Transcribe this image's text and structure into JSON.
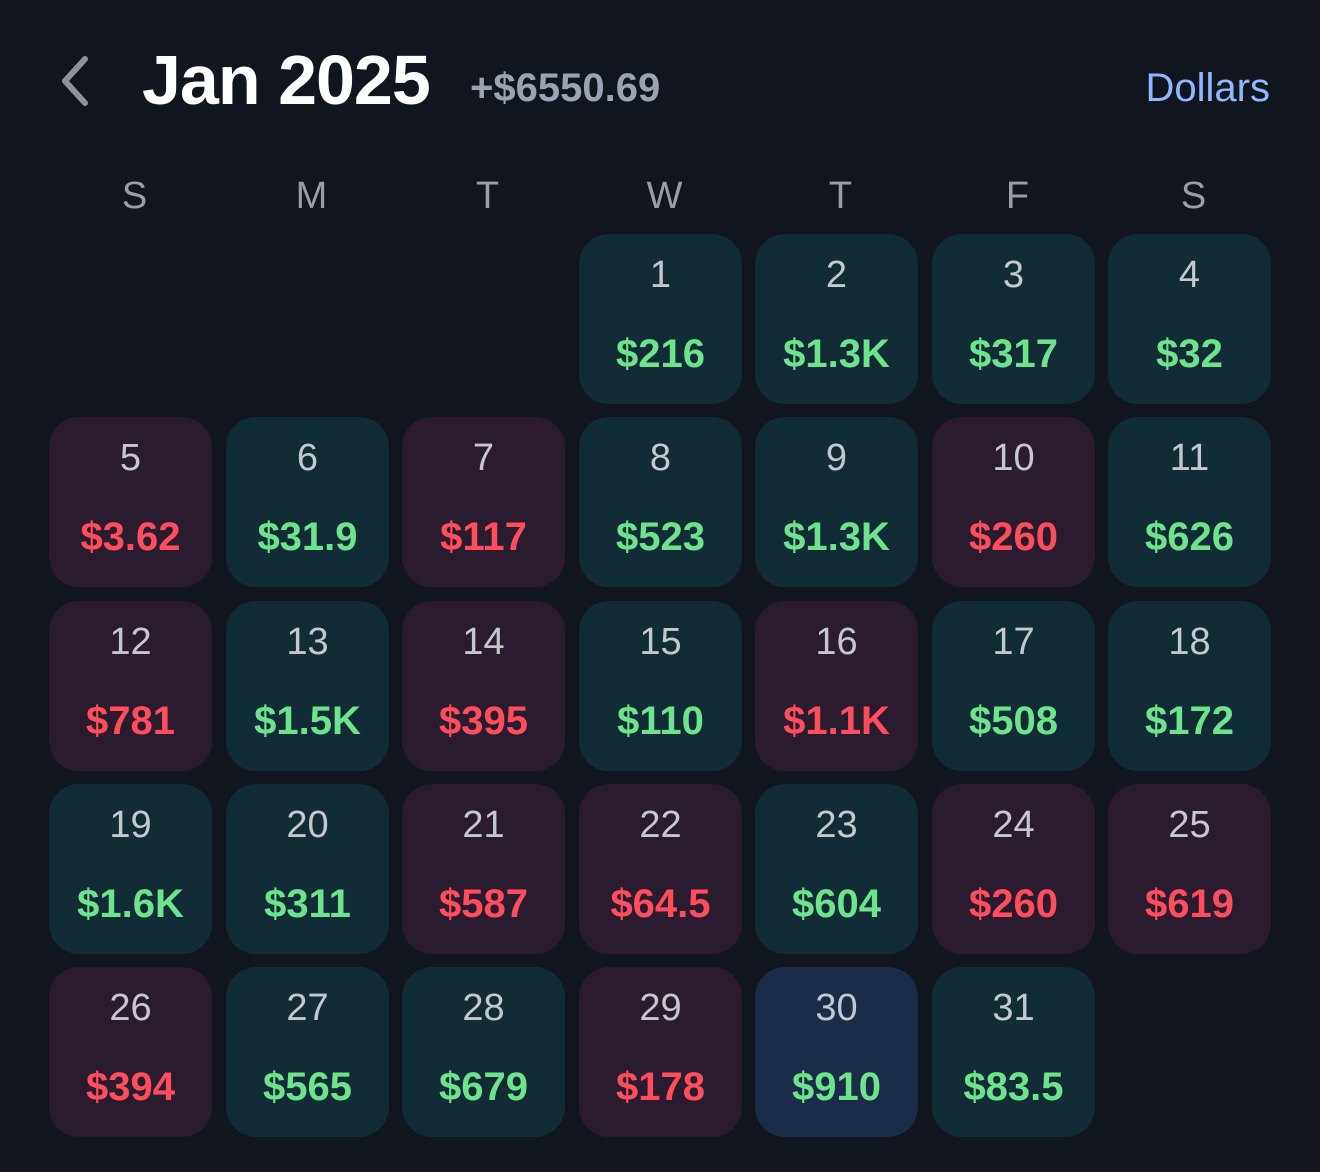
{
  "header": {
    "back_icon": "chevron-left-icon",
    "month_title": "Jan 2025",
    "month_total": "+$6550.69",
    "unit_toggle_label": "Dollars"
  },
  "colors": {
    "background": "#11151d",
    "positive_cell": "#122c35",
    "negative_cell": "#2b1b2f",
    "selected_cell": "#1a2c47",
    "positive_text": "#6ee38e",
    "negative_text": "#ff4d5e",
    "accent": "#8fb8ff"
  },
  "weekdays": [
    "S",
    "M",
    "T",
    "W",
    "T",
    "F",
    "S"
  ],
  "first_weekday_index": 3,
  "days": [
    {
      "day": "1",
      "value": "$216",
      "sign": "positive"
    },
    {
      "day": "2",
      "value": "$1.3K",
      "sign": "positive"
    },
    {
      "day": "3",
      "value": "$317",
      "sign": "positive"
    },
    {
      "day": "4",
      "value": "$32",
      "sign": "positive"
    },
    {
      "day": "5",
      "value": "$3.62",
      "sign": "negative"
    },
    {
      "day": "6",
      "value": "$31.9",
      "sign": "positive"
    },
    {
      "day": "7",
      "value": "$117",
      "sign": "negative"
    },
    {
      "day": "8",
      "value": "$523",
      "sign": "positive"
    },
    {
      "day": "9",
      "value": "$1.3K",
      "sign": "positive"
    },
    {
      "day": "10",
      "value": "$260",
      "sign": "negative"
    },
    {
      "day": "11",
      "value": "$626",
      "sign": "positive"
    },
    {
      "day": "12",
      "value": "$781",
      "sign": "negative"
    },
    {
      "day": "13",
      "value": "$1.5K",
      "sign": "positive"
    },
    {
      "day": "14",
      "value": "$395",
      "sign": "negative"
    },
    {
      "day": "15",
      "value": "$110",
      "sign": "positive"
    },
    {
      "day": "16",
      "value": "$1.1K",
      "sign": "negative"
    },
    {
      "day": "17",
      "value": "$508",
      "sign": "positive"
    },
    {
      "day": "18",
      "value": "$172",
      "sign": "positive"
    },
    {
      "day": "19",
      "value": "$1.6K",
      "sign": "positive"
    },
    {
      "day": "20",
      "value": "$311",
      "sign": "positive"
    },
    {
      "day": "21",
      "value": "$587",
      "sign": "negative"
    },
    {
      "day": "22",
      "value": "$64.5",
      "sign": "negative"
    },
    {
      "day": "23",
      "value": "$604",
      "sign": "positive"
    },
    {
      "day": "24",
      "value": "$260",
      "sign": "negative"
    },
    {
      "day": "25",
      "value": "$619",
      "sign": "negative"
    },
    {
      "day": "26",
      "value": "$394",
      "sign": "negative"
    },
    {
      "day": "27",
      "value": "$565",
      "sign": "positive"
    },
    {
      "day": "28",
      "value": "$679",
      "sign": "positive"
    },
    {
      "day": "29",
      "value": "$178",
      "sign": "negative"
    },
    {
      "day": "30",
      "value": "$910",
      "sign": "positive",
      "selected": true
    },
    {
      "day": "31",
      "value": "$83.5",
      "sign": "positive"
    }
  ]
}
